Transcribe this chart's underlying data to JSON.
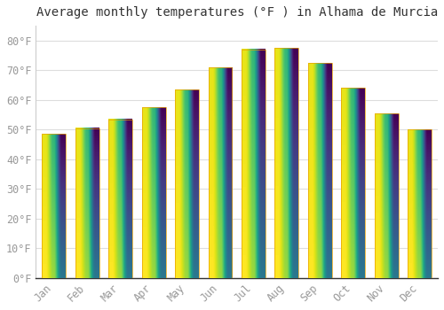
{
  "title": "Average monthly temperatures (°F ) in Alhama de Murcia",
  "months": [
    "Jan",
    "Feb",
    "Mar",
    "Apr",
    "May",
    "Jun",
    "Jul",
    "Aug",
    "Sep",
    "Oct",
    "Nov",
    "Dec"
  ],
  "values": [
    48.5,
    50.5,
    53.5,
    57.5,
    63.5,
    71.0,
    77.0,
    77.5,
    72.5,
    64.0,
    55.5,
    50.0
  ],
  "bar_color_top": "#FFD966",
  "bar_color_bottom": "#F5A800",
  "background_color": "#FFFFFF",
  "grid_color": "#DDDDDD",
  "text_color": "#999999",
  "ylim": [
    0,
    85
  ],
  "yticks": [
    0,
    10,
    20,
    30,
    40,
    50,
    60,
    70,
    80
  ],
  "title_fontsize": 10,
  "tick_fontsize": 8.5
}
